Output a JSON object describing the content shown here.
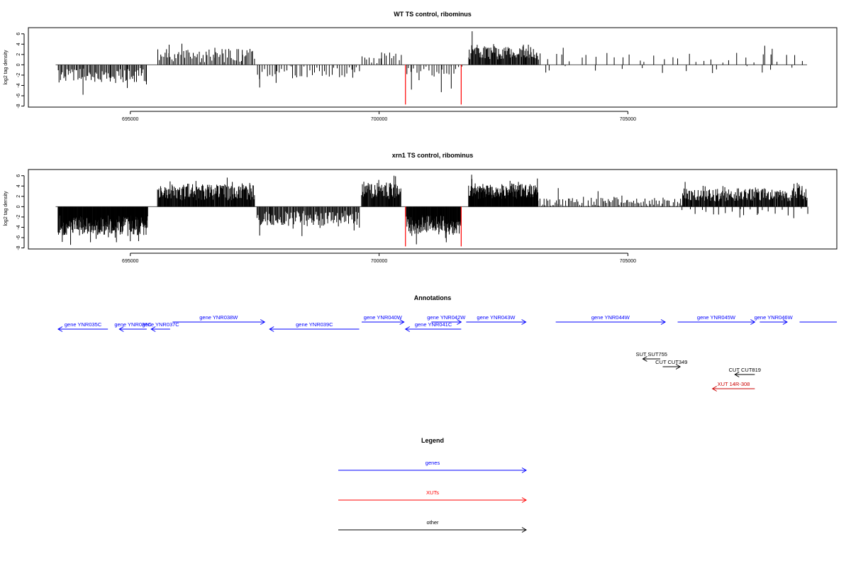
{
  "chart_data": [
    {
      "type": "bar",
      "title": "WT TS control, ribominus",
      "ylabel": "log2 tag density",
      "xlim": [
        693500,
        709000
      ],
      "ylim": [
        -8,
        7
      ],
      "xticks": [
        695000,
        700000,
        705000
      ],
      "yticks": [
        6,
        4,
        2,
        0,
        -2,
        -4,
        -6,
        -8
      ],
      "baseline_segments": [
        [
          693500,
          708600
        ]
      ],
      "regions": [
        {
          "x0": 693550,
          "x1": 695350,
          "sign": -1,
          "density": 0.045,
          "base": 2.0,
          "var": 1.4,
          "peaks": [
            [
              694050,
              5.8
            ],
            [
              694940,
              4.5
            ]
          ]
        },
        {
          "x0": 695550,
          "x1": 697500,
          "sign": 1,
          "density": 0.035,
          "base": 1.8,
          "var": 1.3,
          "peaks": [
            [
              695780,
              3.9
            ],
            [
              696700,
              3.3
            ],
            [
              697250,
              2.9
            ]
          ]
        },
        {
          "x0": 697550,
          "x1": 699600,
          "sign": -1,
          "density": 0.02,
          "base": 1.3,
          "var": 1.2,
          "peaks": [
            [
              697600,
              4.4
            ],
            [
              697930,
              3.5
            ],
            [
              698260,
              2.6
            ],
            [
              699470,
              2.5
            ]
          ]
        },
        {
          "x0": 699650,
          "x1": 700450,
          "sign": 1,
          "density": 0.02,
          "base": 1.5,
          "var": 1.2,
          "peaks": [
            [
              700050,
              2.4
            ]
          ]
        },
        {
          "x0": 700550,
          "x1": 701650,
          "sign": -1,
          "density": 0.02,
          "base": 1.5,
          "var": 1.3,
          "peaks": [
            [
              700650,
              4.8
            ],
            [
              701250,
              5.3
            ],
            [
              701450,
              4.6
            ]
          ]
        },
        {
          "x0": 701800,
          "x1": 703200,
          "sign": 1,
          "density": 0.07,
          "base": 2.3,
          "var": 1.3,
          "peaks": [
            [
              701870,
              6.5
            ],
            [
              702900,
              3.9
            ],
            [
              703000,
              3.9
            ]
          ]
        },
        {
          "x0": 703200,
          "x1": 708600,
          "sign": 1,
          "density": 0.006,
          "base": 1.3,
          "var": 1.0,
          "peaks": [
            [
              703700,
              3.3
            ],
            [
              707750,
              3.7
            ],
            [
              707900,
              3.1
            ]
          ]
        },
        {
          "x0": 703300,
          "x1": 708300,
          "sign": -1,
          "density": 0.002,
          "base": 0.8,
          "var": 0.6,
          "peaks": [
            [
              703350,
              1.5
            ],
            [
              706700,
              1.6
            ],
            [
              707700,
              1.5
            ]
          ]
        }
      ],
      "highlights": [
        {
          "x": 700530,
          "y": -7.7,
          "color": "#ff0000"
        },
        {
          "x": 701650,
          "y": -7.7,
          "color": "#ff0000"
        }
      ]
    },
    {
      "type": "bar",
      "title": "xrn1 TS control, ribominus",
      "ylabel": "log2 tag density",
      "xlim": [
        693500,
        709000
      ],
      "ylim": [
        -8,
        7
      ],
      "xticks": [
        695000,
        700000,
        705000
      ],
      "yticks": [
        6,
        4,
        2,
        0,
        -2,
        -4,
        -6,
        -8
      ],
      "baseline_segments": [
        [
          693500,
          708600
        ]
      ],
      "regions": [
        {
          "x0": 693550,
          "x1": 695350,
          "sign": -1,
          "density": 0.13,
          "base": 3.6,
          "var": 1.9,
          "peaks": [
            [
              693800,
              7.4
            ],
            [
              694200,
              6.9
            ],
            [
              695000,
              6.7
            ]
          ]
        },
        {
          "x0": 695550,
          "x1": 697500,
          "sign": 1,
          "density": 0.09,
          "base": 2.8,
          "var": 1.6,
          "peaks": [
            [
              695800,
              4.9
            ],
            [
              697050,
              4.8
            ],
            [
              697400,
              4.6
            ]
          ]
        },
        {
          "x0": 697550,
          "x1": 699600,
          "sign": -1,
          "density": 0.06,
          "base": 2.3,
          "var": 1.5,
          "peaks": [
            [
              697600,
              5.6
            ],
            [
              698450,
              5.7
            ]
          ]
        },
        {
          "x0": 699650,
          "x1": 700450,
          "sign": 1,
          "density": 0.09,
          "base": 3.0,
          "var": 1.6,
          "peaks": [
            [
              700300,
              6.0
            ],
            [
              700330,
              5.9
            ]
          ]
        },
        {
          "x0": 700550,
          "x1": 701650,
          "sign": -1,
          "density": 0.12,
          "base": 3.6,
          "var": 1.9,
          "peaks": [
            [
              700750,
              7.3
            ],
            [
              701350,
              6.9
            ]
          ]
        },
        {
          "x0": 701800,
          "x1": 703200,
          "sign": 1,
          "density": 0.12,
          "base": 3.0,
          "var": 1.5,
          "peaks": [
            [
              701860,
              6.2
            ],
            [
              702800,
              4.8
            ]
          ]
        },
        {
          "x0": 703200,
          "x1": 706100,
          "sign": 1,
          "density": 0.035,
          "base": 0.9,
          "var": 0.9,
          "peaks": [
            [
              703600,
              3.6
            ],
            [
              704400,
              3.0
            ]
          ]
        },
        {
          "x0": 706100,
          "x1": 708600,
          "sign": 1,
          "density": 0.08,
          "base": 2.3,
          "var": 1.3,
          "peaks": [
            [
              706150,
              4.8
            ],
            [
              708500,
              4.0
            ]
          ]
        },
        {
          "x0": 706100,
          "x1": 708600,
          "sign": -1,
          "density": 0.008,
          "base": 1.0,
          "var": 0.7,
          "peaks": [
            [
              707250,
              2.1
            ],
            [
              707600,
              1.6
            ]
          ]
        }
      ],
      "highlights": [
        {
          "x": 700530,
          "y": -7.7,
          "color": "#ff0000"
        },
        {
          "x": 701650,
          "y": -7.7,
          "color": "#ff0000"
        }
      ]
    }
  ],
  "annotations": {
    "title": "Annotations",
    "features": [
      {
        "label": "gene YNR035C",
        "x0": 693550,
        "x1": 694550,
        "dir": "left",
        "color": "#0000ff",
        "row": 1
      },
      {
        "label": "gene YNR036C",
        "x0": 694780,
        "x1": 695330,
        "dir": "left",
        "color": "#0000ff",
        "row": 1
      },
      {
        "label": "gene YNR037C",
        "x0": 695420,
        "x1": 695800,
        "dir": "left",
        "color": "#0000ff",
        "row": 1
      },
      {
        "label": "gene YNR038W",
        "x0": 695850,
        "x1": 697700,
        "dir": "right",
        "color": "#0000ff",
        "row": 0
      },
      {
        "label": "gene YNR039C",
        "x0": 697800,
        "x1": 699600,
        "dir": "left",
        "color": "#0000ff",
        "row": 1
      },
      {
        "label": "gene YNR040W",
        "x0": 699650,
        "x1": 700500,
        "dir": "right",
        "color": "#0000ff",
        "row": 0
      },
      {
        "label": "gene YNR041C",
        "x0": 700530,
        "x1": 701650,
        "dir": "left",
        "color": "#0000ff",
        "row": 1
      },
      {
        "label": "gene YNR042W",
        "x0": 701050,
        "x1": 701650,
        "dir": "right",
        "color": "#0000ff",
        "row": 0
      },
      {
        "label": "gene YNR043W",
        "x0": 701750,
        "x1": 702950,
        "dir": "right",
        "color": "#0000ff",
        "row": 0
      },
      {
        "label": "gene YNR044W",
        "x0": 703550,
        "x1": 705750,
        "dir": "right",
        "color": "#0000ff",
        "row": 0
      },
      {
        "label": "gene YNR045W",
        "x0": 706000,
        "x1": 707550,
        "dir": "right",
        "color": "#0000ff",
        "row": 0
      },
      {
        "label": "gene YNR046W",
        "x0": 707650,
        "x1": 708200,
        "dir": "right",
        "color": "#0000ff",
        "row": 0
      },
      {
        "label": "",
        "x0": 708450,
        "x1": 709000,
        "dir": "none",
        "color": "#0000ff",
        "row": 0
      },
      {
        "label": "SUT SUT755",
        "x0": 705300,
        "x1": 705650,
        "dir": "left",
        "color": "#000000",
        "row": 4
      },
      {
        "label": "CUT CUT349",
        "x0": 705700,
        "x1": 706050,
        "dir": "right",
        "color": "#000000",
        "row": 5
      },
      {
        "label": "CUT CUT819",
        "x0": 707150,
        "x1": 707550,
        "dir": "left",
        "color": "#000000",
        "row": 6
      },
      {
        "label": "XUT 14R-308",
        "x0": 706700,
        "x1": 707550,
        "dir": "left",
        "color": "#cc0000",
        "row": 7
      }
    ]
  },
  "legend": {
    "title": "Legend",
    "items": [
      {
        "label": "genes",
        "color": "#0000ff"
      },
      {
        "label": "XUTs",
        "color": "#ff0000"
      },
      {
        "label": "other",
        "color": "#000000"
      }
    ]
  }
}
